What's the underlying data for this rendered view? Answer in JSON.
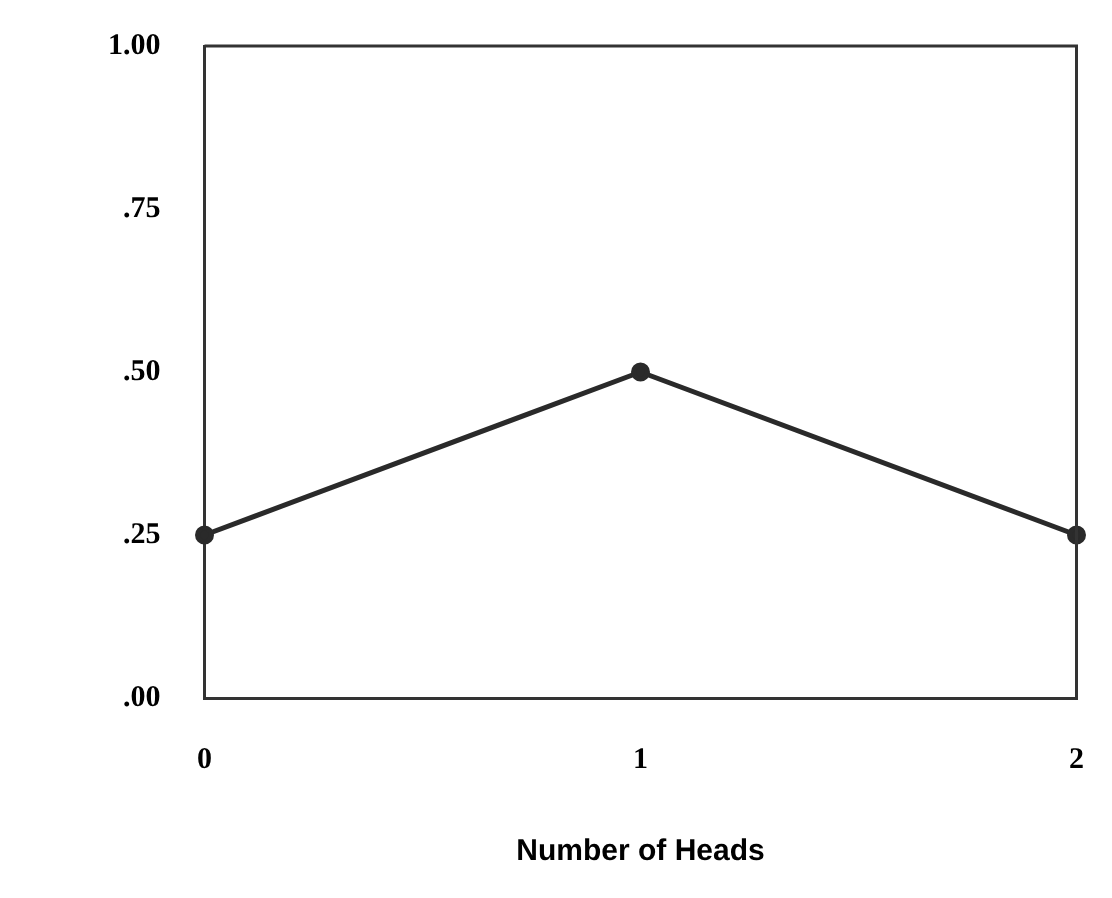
{
  "chart_data": {
    "type": "line",
    "xlabel": "Number of Heads",
    "x": [
      0,
      1,
      2
    ],
    "series": [
      {
        "color": "#2a2a2a",
        "values": [
          0.25,
          0.5,
          0.25
        ]
      }
    ],
    "xlim": [
      0,
      2
    ],
    "xticks": [
      0,
      1,
      2
    ],
    "ylim": [
      0,
      1
    ],
    "yticks": [
      {
        "value": 0,
        "label": ".00"
      },
      {
        "value": 0.25,
        "label": ".25"
      },
      {
        "value": 0.5,
        "label": ".50"
      },
      {
        "value": 0.75,
        "label": ".75"
      },
      {
        "value": 1,
        "label": "1.00"
      }
    ],
    "grid": false,
    "legend": false,
    "marker": "circle",
    "line_style": "solid"
  }
}
